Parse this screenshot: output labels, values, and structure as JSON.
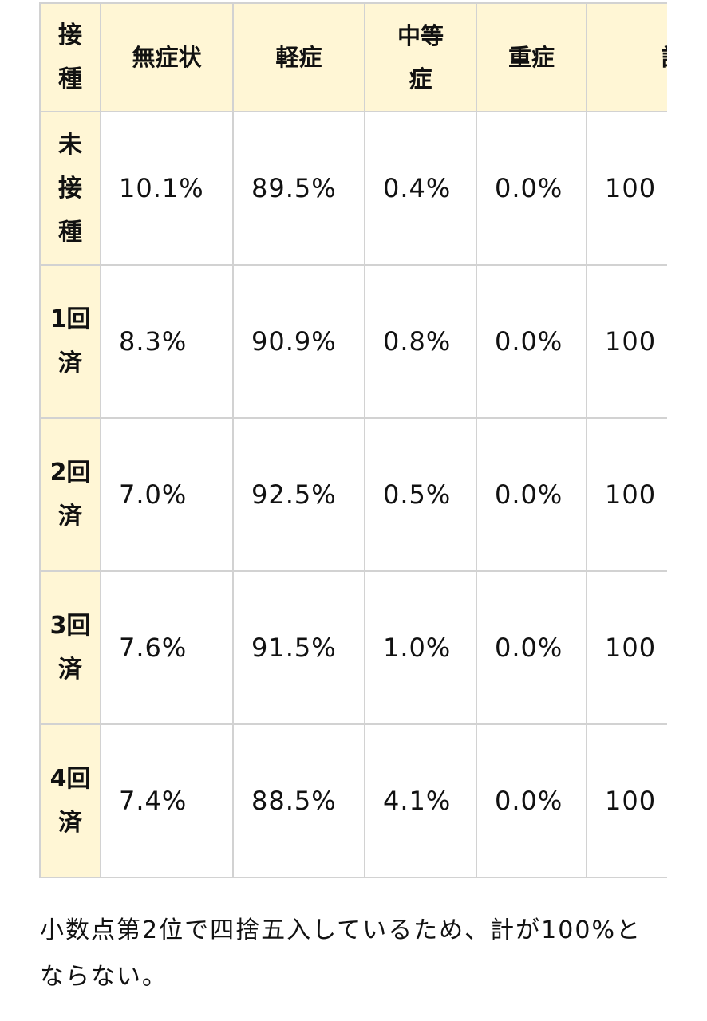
{
  "table": {
    "headers": [
      "接種",
      "無症状",
      "軽症",
      "中等症",
      "重症",
      "計"
    ],
    "rows": [
      {
        "label": "未接種",
        "values": [
          "10.1%",
          "89.5%",
          "0.4%",
          "0.0%",
          "100"
        ]
      },
      {
        "label": "1回済",
        "values": [
          "8.3%",
          "90.9%",
          "0.8%",
          "0.0%",
          "100"
        ]
      },
      {
        "label": "2回済",
        "values": [
          "7.0%",
          "92.5%",
          "0.5%",
          "0.0%",
          "100"
        ]
      },
      {
        "label": "3回済",
        "values": [
          "7.6%",
          "91.5%",
          "1.0%",
          "0.0%",
          "100"
        ]
      },
      {
        "label": "4回済",
        "values": [
          "7.4%",
          "88.5%",
          "4.1%",
          "0.0%",
          "100"
        ]
      }
    ]
  },
  "note": "小数点第2位で四捨五入しているため、計が100%とならない。",
  "colors": {
    "header_bg": "#fff6d5",
    "border": "#d2d2d2"
  }
}
